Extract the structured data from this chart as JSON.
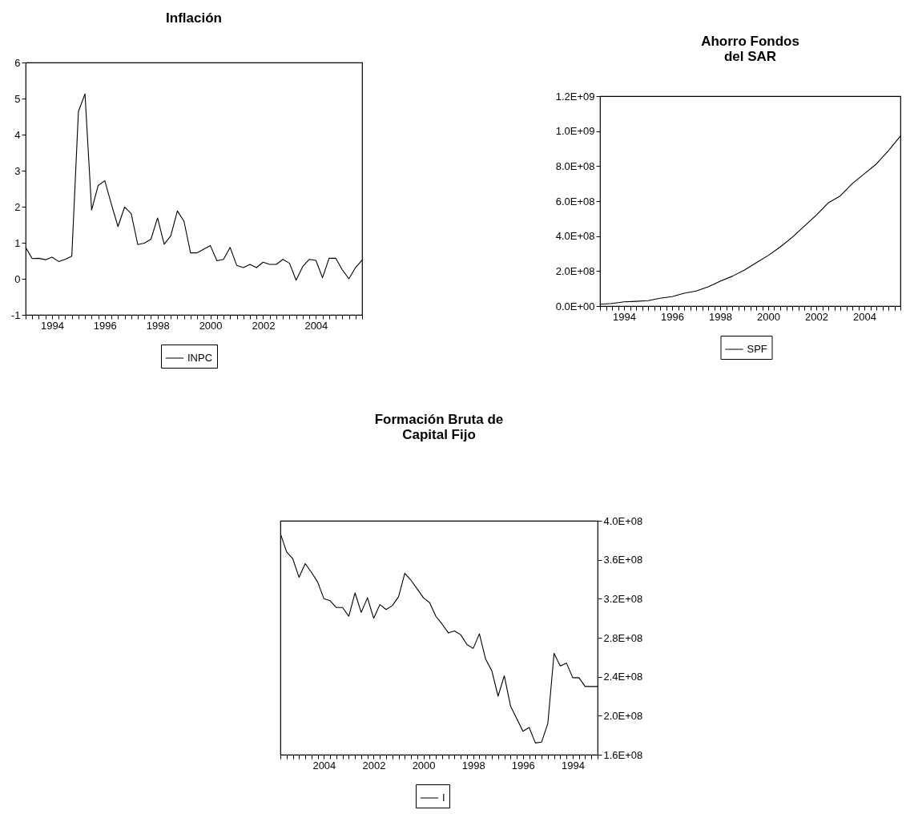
{
  "chart_data": [
    {
      "type": "line",
      "title": "Inflación",
      "legend": "bottom",
      "x": [
        1993,
        1993.25,
        1993.5,
        1993.75,
        1994,
        1994.25,
        1994.5,
        1994.75,
        1995,
        1995.25,
        1995.5,
        1995.75,
        1996,
        1996.25,
        1996.5,
        1996.75,
        1997,
        1997.25,
        1997.5,
        1997.75,
        1998,
        1998.25,
        1998.5,
        1998.75,
        1999,
        1999.25,
        1999.5,
        1999.75,
        2000,
        2000.25,
        2000.5,
        2000.75,
        2001,
        2001.25,
        2001.5,
        2001.75,
        2002,
        2002.25,
        2002.5,
        2002.75,
        2003,
        2003.25,
        2003.5,
        2003.75,
        2004,
        2004.25,
        2004.5,
        2004.75,
        2005,
        2005.25,
        2005.5,
        2005.75
      ],
      "xlim": [
        1993,
        2005.75
      ],
      "xticks": [
        {
          "value": 1993,
          "label": null
        },
        {
          "value": 1993.25,
          "label": null
        },
        {
          "value": 1993.5,
          "label": null
        },
        {
          "value": 1993.75,
          "label": null
        },
        1994,
        {
          "value": 1994.25,
          "label": null
        },
        {
          "value": 1994.5,
          "label": null
        },
        {
          "value": 1994.75,
          "label": null
        },
        {
          "value": 1995,
          "label": null
        },
        {
          "value": 1995.25,
          "label": null
        },
        {
          "value": 1995.5,
          "label": null
        },
        {
          "value": 1995.75,
          "label": null
        },
        1996,
        {
          "value": 1996.25,
          "label": null
        },
        {
          "value": 1996.5,
          "label": null
        },
        {
          "value": 1996.75,
          "label": null
        },
        {
          "value": 1997,
          "label": null
        },
        {
          "value": 1997.25,
          "label": null
        },
        {
          "value": 1997.5,
          "label": null
        },
        {
          "value": 1997.75,
          "label": null
        },
        1998,
        {
          "value": 1998.25,
          "label": null
        },
        {
          "value": 1998.5,
          "label": null
        },
        {
          "value": 1998.75,
          "label": null
        },
        {
          "value": 1999,
          "label": null
        },
        {
          "value": 1999.25,
          "label": null
        },
        {
          "value": 1999.5,
          "label": null
        },
        {
          "value": 1999.75,
          "label": null
        },
        2000,
        {
          "value": 2000.25,
          "label": null
        },
        {
          "value": 2000.5,
          "label": null
        },
        {
          "value": 2000.75,
          "label": null
        },
        {
          "value": 2001,
          "label": null
        },
        {
          "value": 2001.25,
          "label": null
        },
        {
          "value": 2001.5,
          "label": null
        },
        {
          "value": 2001.75,
          "label": null
        },
        2002,
        {
          "value": 2002.25,
          "label": null
        },
        {
          "value": 2002.5,
          "label": null
        },
        {
          "value": 2002.75,
          "label": null
        },
        {
          "value": 2003,
          "label": null
        },
        {
          "value": 2003.25,
          "label": null
        },
        {
          "value": 2003.5,
          "label": null
        },
        {
          "value": 2003.75,
          "label": null
        },
        2004,
        {
          "value": 2004.25,
          "label": null
        },
        {
          "value": 2004.5,
          "label": null
        },
        {
          "value": 2004.75,
          "label": null
        },
        {
          "value": 2005,
          "label": null
        },
        {
          "value": 2005.25,
          "label": null
        },
        {
          "value": 2005.5,
          "label": null
        },
        {
          "value": 2005.75,
          "label": null
        }
      ],
      "ylim": [
        -1,
        6
      ],
      "yticks": [
        -1,
        0,
        1,
        2,
        3,
        4,
        5,
        6
      ],
      "series": [
        {
          "name": "INPC",
          "color": "#000000",
          "values": [
            0.87,
            0.56,
            0.57,
            0.53,
            0.6,
            0.48,
            0.54,
            0.63,
            4.64,
            5.13,
            1.91,
            2.59,
            2.72,
            2.07,
            1.45,
            1.99,
            1.81,
            0.95,
            0.99,
            1.1,
            1.69,
            0.96,
            1.19,
            1.88,
            1.6,
            0.72,
            0.72,
            0.82,
            0.92,
            0.5,
            0.54,
            0.87,
            0.37,
            0.31,
            0.4,
            0.31,
            0.46,
            0.4,
            0.4,
            0.54,
            0.43,
            -0.04,
            0.34,
            0.54,
            0.51,
            0.03,
            0.57,
            0.57,
            0.25,
            0.0,
            0.31,
            0.52
          ]
        }
      ]
    },
    {
      "type": "line",
      "title": "Ahorro Fondos\ndel SAR",
      "legend": "bottom",
      "x": [
        1993,
        1993.5,
        1994,
        1994.5,
        1995,
        1995.5,
        1996,
        1996.5,
        1997,
        1997.5,
        1998,
        1998.5,
        1999,
        1999.5,
        2000,
        2000.5,
        2001,
        2001.5,
        2002,
        2002.5,
        2003,
        2003.5,
        2004,
        2004.5,
        2005,
        2005.5
      ],
      "xlim": [
        1993,
        2005.5
      ],
      "xticks": [
        {
          "value": 1993,
          "label": null
        },
        {
          "value": 1993.25,
          "label": null
        },
        {
          "value": 1993.5,
          "label": null
        },
        {
          "value": 1993.75,
          "label": null
        },
        1994,
        {
          "value": 1994.25,
          "label": null
        },
        {
          "value": 1994.5,
          "label": null
        },
        {
          "value": 1994.75,
          "label": null
        },
        {
          "value": 1995,
          "label": null
        },
        {
          "value": 1995.25,
          "label": null
        },
        {
          "value": 1995.5,
          "label": null
        },
        {
          "value": 1995.75,
          "label": null
        },
        1996,
        {
          "value": 1996.25,
          "label": null
        },
        {
          "value": 1996.5,
          "label": null
        },
        {
          "value": 1996.75,
          "label": null
        },
        {
          "value": 1997,
          "label": null
        },
        {
          "value": 1997.25,
          "label": null
        },
        {
          "value": 1997.5,
          "label": null
        },
        {
          "value": 1997.75,
          "label": null
        },
        1998,
        {
          "value": 1998.25,
          "label": null
        },
        {
          "value": 1998.5,
          "label": null
        },
        {
          "value": 1998.75,
          "label": null
        },
        {
          "value": 1999,
          "label": null
        },
        {
          "value": 1999.25,
          "label": null
        },
        {
          "value": 1999.5,
          "label": null
        },
        {
          "value": 1999.75,
          "label": null
        },
        2000,
        {
          "value": 2000.25,
          "label": null
        },
        {
          "value": 2000.5,
          "label": null
        },
        {
          "value": 2000.75,
          "label": null
        },
        {
          "value": 2001,
          "label": null
        },
        {
          "value": 2001.25,
          "label": null
        },
        {
          "value": 2001.5,
          "label": null
        },
        {
          "value": 2001.75,
          "label": null
        },
        2002,
        {
          "value": 2002.25,
          "label": null
        },
        {
          "value": 2002.5,
          "label": null
        },
        {
          "value": 2002.75,
          "label": null
        },
        {
          "value": 2003,
          "label": null
        },
        {
          "value": 2003.25,
          "label": null
        },
        {
          "value": 2003.5,
          "label": null
        },
        {
          "value": 2003.75,
          "label": null
        },
        2004,
        {
          "value": 2004.25,
          "label": null
        },
        {
          "value": 2004.5,
          "label": null
        },
        {
          "value": 2004.75,
          "label": null
        },
        {
          "value": 2005,
          "label": null
        },
        {
          "value": 2005.25,
          "label": null
        },
        {
          "value": 2005.5,
          "label": null
        }
      ],
      "ylim": [
        0,
        1200000000
      ],
      "yticks": [
        {
          "value": 0,
          "label": "0.0E+00"
        },
        {
          "value": 200000000,
          "label": "2.0E+08"
        },
        {
          "value": 400000000,
          "label": "4.0E+08"
        },
        {
          "value": 600000000,
          "label": "6.0E+08"
        },
        {
          "value": 800000000,
          "label": "8.0E+08"
        },
        {
          "value": 1000000000,
          "label": "1.0E+09"
        },
        {
          "value": 1200000000,
          "label": "1.2E+09"
        }
      ],
      "series": [
        {
          "name": "SPF",
          "color": "#000000",
          "values": [
            10000000,
            15000000,
            24000000,
            27000000,
            31000000,
            45000000,
            54000000,
            73000000,
            86000000,
            110000000,
            142000000,
            170000000,
            205000000,
            247000000,
            289000000,
            338000000,
            393000000,
            456000000,
            519000000,
            590000000,
            630000000,
            700000000,
            756000000,
            812000000,
            888000000,
            972000000
          ]
        }
      ]
    },
    {
      "type": "line",
      "title": "Formación Bruta de\nCapital Fijo",
      "legend": "bottom",
      "x": [
        1993,
        1993.25,
        1993.5,
        1993.75,
        1994,
        1994.25,
        1994.5,
        1994.75,
        1995,
        1995.25,
        1995.5,
        1995.75,
        1996,
        1996.25,
        1996.5,
        1996.75,
        1997,
        1997.25,
        1997.5,
        1997.75,
        1998,
        1998.25,
        1998.5,
        1998.75,
        1999,
        1999.25,
        1999.5,
        1999.75,
        2000,
        2000.25,
        2000.5,
        2000.75,
        2001,
        2001.25,
        2001.5,
        2001.75,
        2002,
        2002.25,
        2002.5,
        2002.75,
        2003,
        2003.25,
        2003.5,
        2003.75,
        2004,
        2004.25,
        2004.5,
        2004.75,
        2005,
        2005.25,
        2005.5,
        2005.75
      ],
      "xlim": [
        2005.75,
        1993
      ],
      "xticks": [
        {
          "value": 1993,
          "label": null
        },
        {
          "value": 1993.25,
          "label": null
        },
        {
          "value": 1993.5,
          "label": null
        },
        {
          "value": 1993.75,
          "label": null
        },
        1994,
        {
          "value": 1994.25,
          "label": null
        },
        {
          "value": 1994.5,
          "label": null
        },
        {
          "value": 1994.75,
          "label": null
        },
        {
          "value": 1995,
          "label": null
        },
        {
          "value": 1995.25,
          "label": null
        },
        {
          "value": 1995.5,
          "label": null
        },
        {
          "value": 1995.75,
          "label": null
        },
        1996,
        {
          "value": 1996.25,
          "label": null
        },
        {
          "value": 1996.5,
          "label": null
        },
        {
          "value": 1996.75,
          "label": null
        },
        {
          "value": 1997,
          "label": null
        },
        {
          "value": 1997.25,
          "label": null
        },
        {
          "value": 1997.5,
          "label": null
        },
        {
          "value": 1997.75,
          "label": null
        },
        1998,
        {
          "value": 1998.25,
          "label": null
        },
        {
          "value": 1998.5,
          "label": null
        },
        {
          "value": 1998.75,
          "label": null
        },
        {
          "value": 1999,
          "label": null
        },
        {
          "value": 1999.25,
          "label": null
        },
        {
          "value": 1999.5,
          "label": null
        },
        {
          "value": 1999.75,
          "label": null
        },
        2000,
        {
          "value": 2000.25,
          "label": null
        },
        {
          "value": 2000.5,
          "label": null
        },
        {
          "value": 2000.75,
          "label": null
        },
        {
          "value": 2001,
          "label": null
        },
        {
          "value": 2001.25,
          "label": null
        },
        {
          "value": 2001.5,
          "label": null
        },
        {
          "value": 2001.75,
          "label": null
        },
        2002,
        {
          "value": 2002.25,
          "label": null
        },
        {
          "value": 2002.5,
          "label": null
        },
        {
          "value": 2002.75,
          "label": null
        },
        {
          "value": 2003,
          "label": null
        },
        {
          "value": 2003.25,
          "label": null
        },
        {
          "value": 2003.5,
          "label": null
        },
        {
          "value": 2003.75,
          "label": null
        },
        2004,
        {
          "value": 2004.25,
          "label": null
        },
        {
          "value": 2004.5,
          "label": null
        },
        {
          "value": 2004.75,
          "label": null
        },
        {
          "value": 2005,
          "label": null
        },
        {
          "value": 2005.25,
          "label": null
        },
        {
          "value": 2005.5,
          "label": null
        },
        {
          "value": 2005.75,
          "label": null
        }
      ],
      "y2lim": [
        160000000,
        400000000
      ],
      "y2ticks": [
        {
          "value": 160000000,
          "label": "1.6E+08"
        },
        {
          "value": 200000000,
          "label": "2.0E+08"
        },
        {
          "value": 240000000,
          "label": "2.4E+08"
        },
        {
          "value": 280000000,
          "label": "2.8E+08"
        },
        {
          "value": 320000000,
          "label": "3.2E+08"
        },
        {
          "value": 360000000,
          "label": "3.6E+08"
        },
        {
          "value": 400000000,
          "label": "4.0E+08"
        }
      ],
      "series": [
        {
          "name": "I",
          "color": "#000000",
          "axis": "y2",
          "values": [
            230000000,
            230000000,
            230000000,
            239000000,
            239000000,
            254000000,
            251000000,
            264000000,
            192000000,
            173000000,
            172000000,
            188000000,
            184000000,
            197000000,
            210000000,
            241000000,
            220000000,
            246000000,
            258000000,
            284000000,
            269000000,
            273000000,
            283000000,
            287000000,
            285000000,
            294000000,
            302000000,
            316000000,
            321000000,
            330000000,
            339000000,
            346000000,
            322000000,
            313000000,
            309000000,
            314000000,
            300000000,
            321000000,
            306000000,
            326000000,
            302000000,
            311000000,
            311000000,
            318000000,
            320000000,
            337000000,
            347000000,
            356000000,
            342000000,
            361000000,
            368000000,
            387000000
          ]
        }
      ]
    }
  ]
}
